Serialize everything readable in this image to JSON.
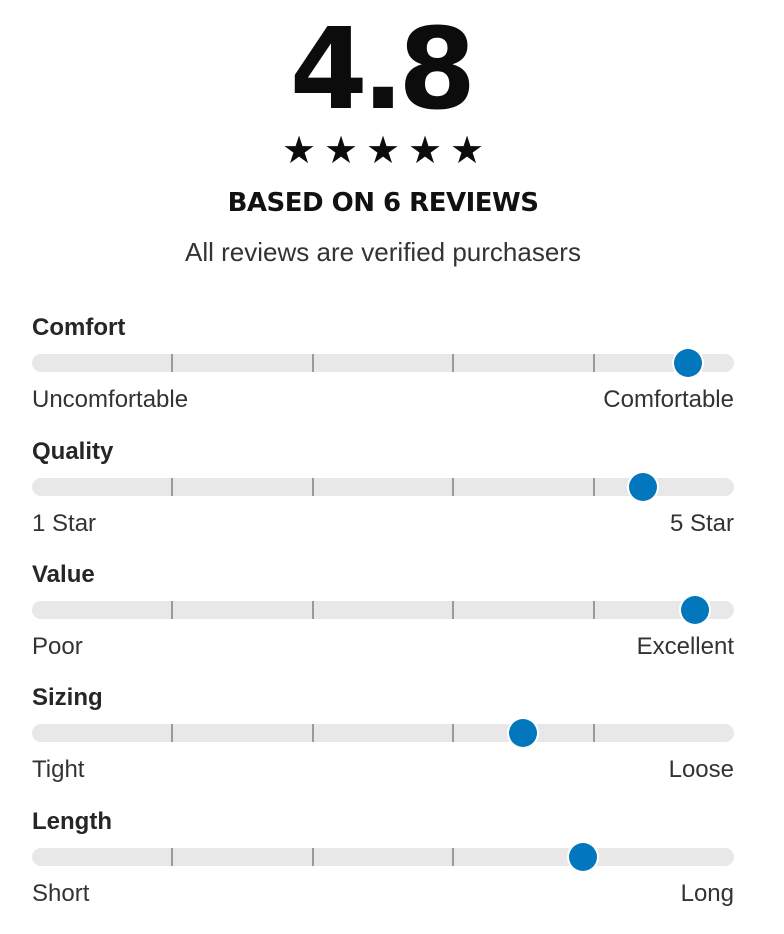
{
  "summary": {
    "rating": "4.8",
    "stars": [
      "★",
      "★",
      "★",
      "★",
      "★"
    ],
    "stars_icon": "star-icon",
    "based_on": "BASED ON 6 REVIEWS",
    "verified_note": "All reviews are verified purchasers"
  },
  "accent_color": "#0277bd",
  "metrics": [
    {
      "label": "Comfort",
      "min_label": "Uncomfortable",
      "max_label": "Comfortable",
      "level": 0.935
    },
    {
      "label": "Quality",
      "min_label": "1 Star",
      "max_label": "5 Star",
      "level": 0.87
    },
    {
      "label": "Value",
      "min_label": "Poor",
      "max_label": "Excellent",
      "level": 0.945
    },
    {
      "label": "Sizing",
      "min_label": "Tight",
      "max_label": "Loose",
      "level": 0.7
    },
    {
      "label": "Length",
      "min_label": "Short",
      "max_label": "Long",
      "level": 0.785
    }
  ]
}
